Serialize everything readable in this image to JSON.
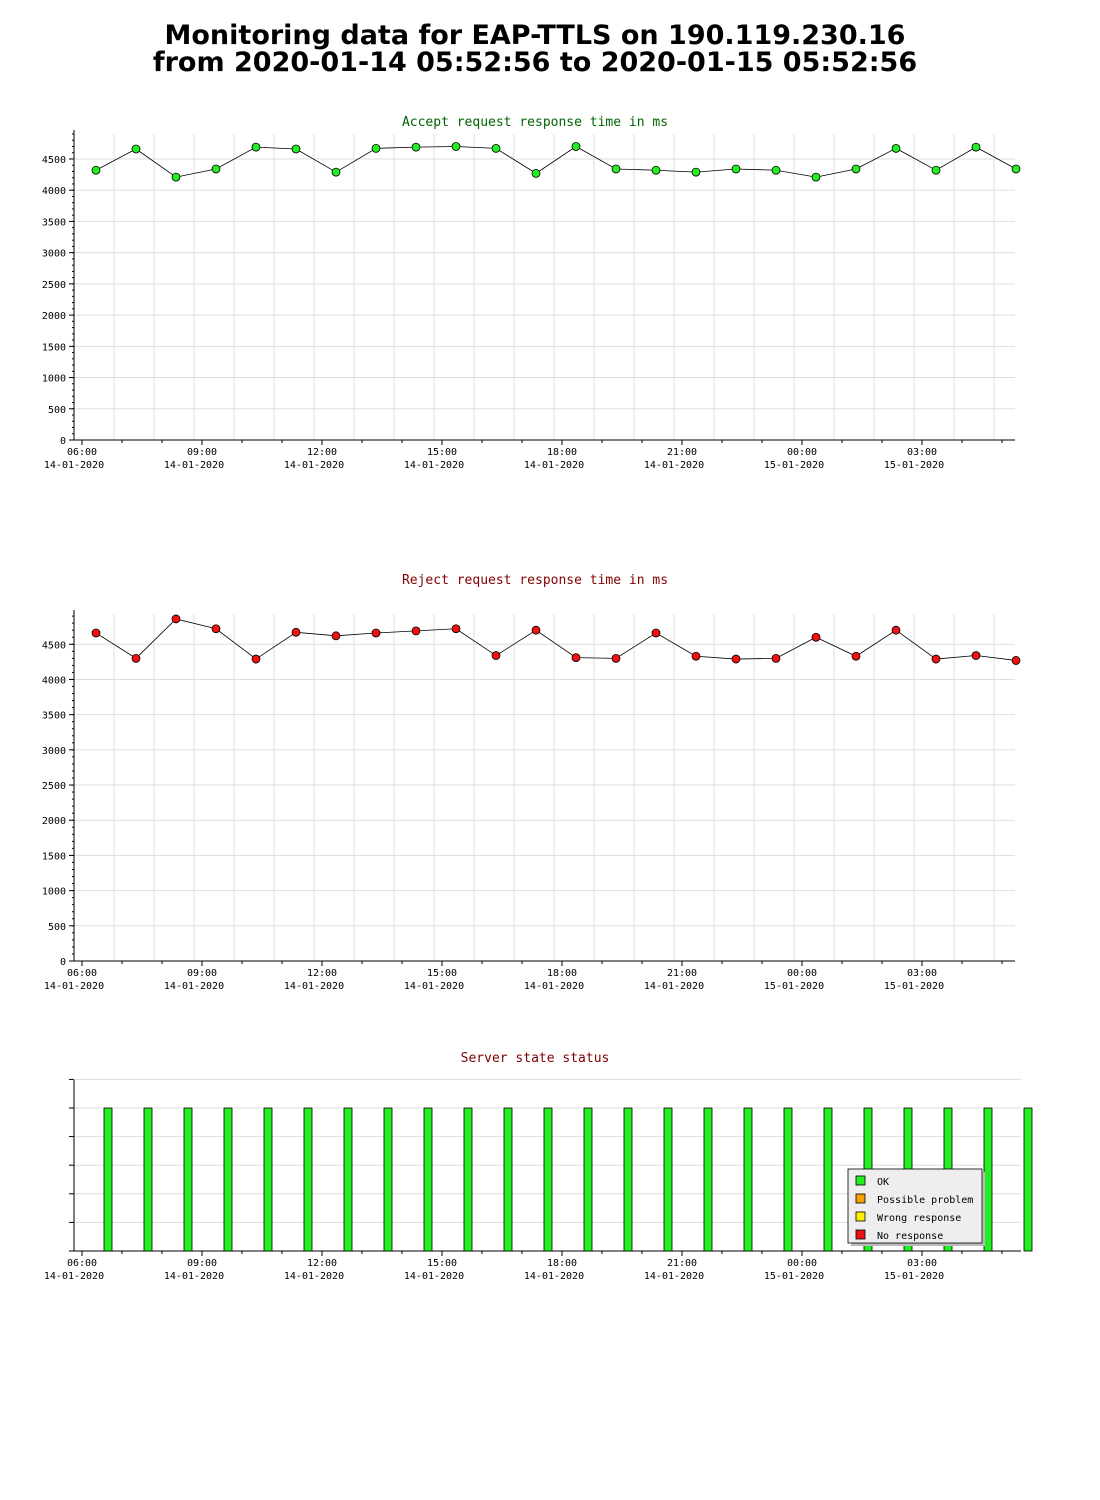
{
  "page": {
    "title_line1": "Monitoring data for EAP-TTLS on 190.119.230.16",
    "title_line2": "from 2020-01-14 05:52:56 to 2020-01-15 05:52:56"
  },
  "x_axis": {
    "tick_labels": [
      {
        "time": "06:00",
        "date": "14-01-2020"
      },
      {
        "time": "09:00",
        "date": "14-01-2020"
      },
      {
        "time": "12:00",
        "date": "14-01-2020"
      },
      {
        "time": "15:00",
        "date": "14-01-2020"
      },
      {
        "time": "18:00",
        "date": "14-01-2020"
      },
      {
        "time": "21:00",
        "date": "14-01-2020"
      },
      {
        "time": "00:00",
        "date": "15-01-2020"
      },
      {
        "time": "03:00",
        "date": "15-01-2020"
      }
    ]
  },
  "colors": {
    "accept_title": "#006400",
    "reject_title": "#800000",
    "state_title": "#800000",
    "accept_marker": "#22ee22",
    "reject_marker": "#ee1111",
    "ok": "#22ee22",
    "possible_problem": "#f5a000",
    "wrong_response": "#ffee00",
    "no_response": "#ee1111",
    "grid": "#dddddd"
  },
  "chart_data": [
    {
      "type": "line",
      "title": "Accept request response time in ms",
      "x_times": [
        "06:21",
        "07:21",
        "08:21",
        "09:21",
        "10:21",
        "11:21",
        "12:21",
        "13:21",
        "14:21",
        "15:21",
        "16:21",
        "17:21",
        "18:21",
        "19:21",
        "20:21",
        "21:21",
        "22:21",
        "23:21",
        "00:21",
        "01:21",
        "02:21",
        "03:21",
        "04:21",
        "05:21"
      ],
      "y": [
        4320,
        4660,
        4210,
        4340,
        4690,
        4660,
        4290,
        4670,
        4690,
        4700,
        4670,
        4270,
        4700,
        4340,
        4320,
        4290,
        4340,
        4320,
        4210,
        4340,
        4670,
        4320,
        4690,
        4340
      ],
      "ylim": [
        0,
        4900
      ],
      "yticks": [
        0,
        500,
        1000,
        1500,
        2000,
        2500,
        3000,
        3500,
        4000,
        4500
      ],
      "grid": true
    },
    {
      "type": "line",
      "title": "Reject request response time in ms",
      "x_times": [
        "06:21",
        "07:21",
        "08:21",
        "09:21",
        "10:21",
        "11:21",
        "12:21",
        "13:21",
        "14:21",
        "15:21",
        "16:21",
        "17:21",
        "18:21",
        "19:21",
        "20:21",
        "21:21",
        "22:21",
        "23:21",
        "00:21",
        "01:21",
        "02:21",
        "03:21",
        "04:21",
        "05:21"
      ],
      "y": [
        4660,
        4300,
        4860,
        4720,
        4290,
        4670,
        4620,
        4660,
        4690,
        4720,
        4340,
        4700,
        4310,
        4300,
        4660,
        4330,
        4290,
        4300,
        4600,
        4330,
        4700,
        4290,
        4340,
        4270
      ],
      "ylim": [
        0,
        4930
      ],
      "yticks": [
        0,
        500,
        1000,
        1500,
        2000,
        2500,
        3000,
        3500,
        4000,
        4500
      ],
      "grid": true
    },
    {
      "type": "bar",
      "title": "Server state status",
      "x_times": [
        "06:21",
        "07:21",
        "08:21",
        "09:21",
        "10:21",
        "11:21",
        "12:21",
        "13:21",
        "14:21",
        "15:21",
        "16:21",
        "17:21",
        "18:21",
        "19:21",
        "20:21",
        "21:21",
        "22:21",
        "23:21",
        "00:21",
        "01:21",
        "02:21",
        "03:21",
        "04:21",
        "05:21"
      ],
      "states": [
        "OK",
        "OK",
        "OK",
        "OK",
        "OK",
        "OK",
        "OK",
        "OK",
        "OK",
        "OK",
        "OK",
        "OK",
        "OK",
        "OK",
        "OK",
        "OK",
        "OK",
        "OK",
        "OK",
        "OK",
        "OK",
        "OK",
        "OK",
        "OK"
      ],
      "legend": [
        "OK",
        "Possible problem",
        "Wrong response",
        "No response"
      ],
      "legend_position": "bottom-right"
    }
  ]
}
